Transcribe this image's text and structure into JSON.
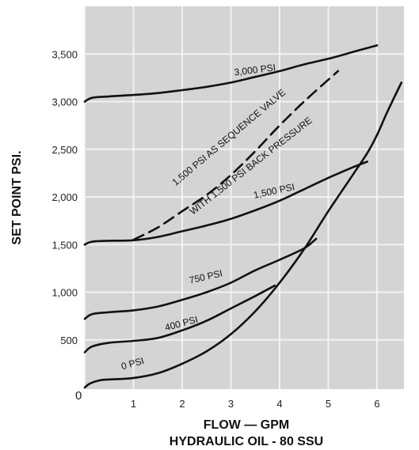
{
  "chart_data": {
    "type": "line",
    "title": "",
    "xlabel": "FLOW — GPM",
    "xlabel2": "HYDRAULIC OIL - 80 SSU",
    "ylabel": "SET POINT PSI.",
    "xlim": [
      0,
      6.5
    ],
    "ylim": [
      0,
      3900
    ],
    "grid": true,
    "origin_label": "0",
    "x_ticks": [
      "1",
      "2",
      "3",
      "4",
      "5",
      "6"
    ],
    "y_ticks": [
      "500",
      "1,000",
      "1,500",
      "2,000",
      "2,500",
      "3,000",
      "3,500"
    ],
    "series": [
      {
        "name": "3,000 PSI",
        "style": "solid",
        "x": [
          0,
          0.15,
          0.5,
          1,
          1.5,
          2,
          2.5,
          3,
          3.5,
          4,
          4.5,
          5,
          5.5,
          6
        ],
        "y": [
          3000,
          3040,
          3055,
          3070,
          3090,
          3120,
          3155,
          3200,
          3260,
          3320,
          3390,
          3450,
          3520,
          3590
        ]
      },
      {
        "name": "1,500 PSI AS SEQUENCE VALVE WITH 1,500 PSI BACK PRESSURE",
        "style": "dashed",
        "x": [
          1,
          1.5,
          2,
          2.5,
          3,
          3.5,
          4,
          4.5,
          5,
          5.2
        ],
        "y": [
          1550,
          1680,
          1850,
          2020,
          2230,
          2480,
          2750,
          3000,
          3230,
          3320
        ]
      },
      {
        "name": "1,500 PSI",
        "style": "solid",
        "x": [
          0,
          0.15,
          0.5,
          1,
          1.5,
          2,
          2.5,
          3,
          3.5,
          4,
          4.5,
          5,
          5.5,
          5.8
        ],
        "y": [
          1500,
          1530,
          1540,
          1545,
          1580,
          1640,
          1700,
          1770,
          1860,
          1960,
          2080,
          2200,
          2310,
          2370
        ]
      },
      {
        "name": "750 PSI",
        "style": "solid",
        "x": [
          0,
          0.15,
          0.5,
          1,
          1.5,
          2,
          2.5,
          3,
          3.5,
          4,
          4.5,
          4.75
        ],
        "y": [
          720,
          770,
          790,
          810,
          850,
          920,
          1000,
          1100,
          1230,
          1340,
          1460,
          1560
        ]
      },
      {
        "name": "400 PSI",
        "style": "solid",
        "x": [
          0,
          0.15,
          0.5,
          1,
          1.5,
          2,
          2.5,
          3,
          3.5,
          3.9
        ],
        "y": [
          370,
          430,
          470,
          490,
          520,
          600,
          700,
          830,
          960,
          1070
        ]
      },
      {
        "name": "0 PSI",
        "style": "solid",
        "x": [
          0,
          0.1,
          0.3,
          0.5,
          1,
          1.5,
          2,
          2.5,
          3,
          3.5,
          4,
          4.5,
          5,
          5.5,
          5.8,
          6,
          6.2,
          6.5
        ],
        "y": [
          0,
          40,
          75,
          85,
          100,
          150,
          250,
          380,
          560,
          800,
          1100,
          1450,
          1850,
          2230,
          2460,
          2650,
          2880,
          3200
        ]
      }
    ],
    "curve_labels": [
      {
        "text": "3,000 PSI",
        "series": 0,
        "x": 3.5,
        "y": 3300,
        "angle": -7
      },
      {
        "text": "1,500 PSI AS SEQUENCE VALVE",
        "series": 1,
        "x": 3.0,
        "y": 2600,
        "angle": -40
      },
      {
        "text": "WITH 1,500 PSI BACK PRESSURE",
        "series": 1,
        "x": 3.45,
        "y": 2300,
        "angle": -38
      },
      {
        "text": "1,500 PSI",
        "series": 2,
        "x": 3.9,
        "y": 2030,
        "angle": -12
      },
      {
        "text": "750 PSI",
        "series": 3,
        "x": 2.5,
        "y": 1130,
        "angle": -13
      },
      {
        "text": "400 PSI",
        "series": 4,
        "x": 2.0,
        "y": 640,
        "angle": -15
      },
      {
        "text": "0 PSI",
        "series": 5,
        "x": 1.0,
        "y": 220,
        "angle": -16
      }
    ],
    "colors": {
      "background": "#d4d4d4",
      "grid": "#f2f2f2",
      "line": "#111111"
    }
  }
}
